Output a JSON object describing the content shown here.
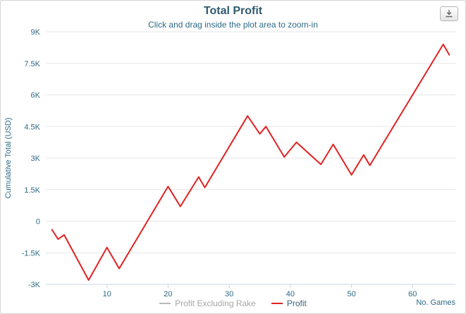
{
  "colors": {
    "title": "#315a6e",
    "axis_text": "#2d6a85",
    "legend_text": "#3c6478",
    "muted_text": "#a7a7a7",
    "gridline": "#e6e6e6",
    "axis_line": "#c9d4e4",
    "profit_line": "#e02222",
    "excl_rake_line": "#b7b7b7"
  },
  "export_button": {
    "icon": "download-icon"
  },
  "chart_data": {
    "type": "line",
    "title": "Total Profit",
    "subtitle": "Click and drag inside the plot area to zoom-in",
    "xlabel": "No. Games",
    "ylabel": "Cumulative Total (USD)",
    "xlim": [
      0,
      67
    ],
    "ylim": [
      -3000,
      9000
    ],
    "grid": "horizontal",
    "legend_position": "bottom",
    "xticks": [
      10,
      20,
      30,
      40,
      50,
      60
    ],
    "yticks": [
      {
        "v": -3000,
        "label": "-3K"
      },
      {
        "v": -1500,
        "label": "-1.5K"
      },
      {
        "v": 0,
        "label": "0"
      },
      {
        "v": 1500,
        "label": "1.5K"
      },
      {
        "v": 3000,
        "label": "3K"
      },
      {
        "v": 4500,
        "label": "4.5K"
      },
      {
        "v": 6000,
        "label": "6K"
      },
      {
        "v": 7500,
        "label": "7.5K"
      },
      {
        "v": 9000,
        "label": "9K"
      }
    ],
    "series": [
      {
        "name": "Profit Excluding Rake",
        "color": "#b7b7b7",
        "visible": false,
        "points": []
      },
      {
        "name": "Profit",
        "color": "#e02222",
        "visible": true,
        "points": [
          [
            1,
            -400
          ],
          [
            2,
            -850
          ],
          [
            3,
            -650
          ],
          [
            7,
            -2800
          ],
          [
            10,
            -1250
          ],
          [
            12,
            -2250
          ],
          [
            20,
            1650
          ],
          [
            22,
            700
          ],
          [
            25,
            2100
          ],
          [
            26,
            1600
          ],
          [
            33,
            5000
          ],
          [
            35,
            4150
          ],
          [
            36,
            4500
          ],
          [
            39,
            3050
          ],
          [
            41,
            3750
          ],
          [
            45,
            2700
          ],
          [
            47,
            3650
          ],
          [
            50,
            2200
          ],
          [
            52,
            3150
          ],
          [
            53,
            2650
          ],
          [
            65,
            8400
          ],
          [
            66,
            7900
          ]
        ]
      }
    ]
  }
}
